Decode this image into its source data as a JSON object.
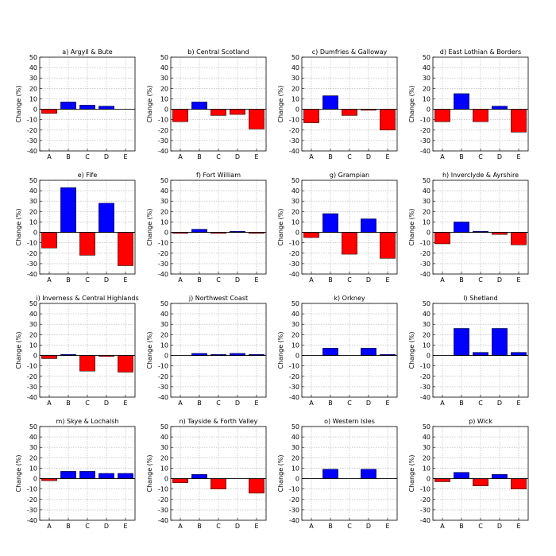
{
  "figure": {
    "ylabel": "Change (%)",
    "ylim": [
      -40,
      50
    ],
    "yticks": [
      -40,
      -30,
      -20,
      -10,
      0,
      10,
      20,
      30,
      40,
      50
    ],
    "categories": [
      "A",
      "B",
      "C",
      "D",
      "E"
    ],
    "colors": {
      "positive": "#0000ff",
      "negative": "#ff0000"
    }
  },
  "chart_data": [
    {
      "type": "bar",
      "title": "a) Argyll & Bute",
      "categories": [
        "A",
        "B",
        "C",
        "D",
        "E"
      ],
      "values": [
        -4,
        7,
        4,
        3,
        0
      ],
      "ylabel": "Change (%)",
      "ylim": [
        -40,
        50
      ],
      "grid": true
    },
    {
      "type": "bar",
      "title": "b) Central Scotland",
      "categories": [
        "A",
        "B",
        "C",
        "D",
        "E"
      ],
      "values": [
        -12,
        7,
        -6,
        -5,
        -19
      ],
      "ylabel": "Change (%)",
      "ylim": [
        -40,
        50
      ],
      "grid": true
    },
    {
      "type": "bar",
      "title": "c) Dumfries & Galloway",
      "categories": [
        "A",
        "B",
        "C",
        "D",
        "E"
      ],
      "values": [
        -13,
        13,
        -6,
        -1,
        -20
      ],
      "ylabel": "Change (%)",
      "ylim": [
        -40,
        50
      ],
      "grid": true
    },
    {
      "type": "bar",
      "title": "d) East Lothian & Borders",
      "categories": [
        "A",
        "B",
        "C",
        "D",
        "E"
      ],
      "values": [
        -12,
        15,
        -12,
        3,
        -22
      ],
      "ylabel": "Change (%)",
      "ylim": [
        -40,
        50
      ],
      "grid": true
    },
    {
      "type": "bar",
      "title": "e) Fife",
      "categories": [
        "A",
        "B",
        "C",
        "D",
        "E"
      ],
      "values": [
        -15,
        43,
        -22,
        28,
        -32
      ],
      "ylabel": "Change (%)",
      "ylim": [
        -40,
        50
      ],
      "grid": true
    },
    {
      "type": "bar",
      "title": "f) Fort William",
      "categories": [
        "A",
        "B",
        "C",
        "D",
        "E"
      ],
      "values": [
        -1,
        3,
        -1,
        1,
        -1
      ],
      "ylabel": "Change (%)",
      "ylim": [
        -40,
        50
      ],
      "grid": true
    },
    {
      "type": "bar",
      "title": "g) Grampian",
      "categories": [
        "A",
        "B",
        "C",
        "D",
        "E"
      ],
      "values": [
        -5,
        18,
        -21,
        13,
        -25
      ],
      "ylabel": "Change (%)",
      "ylim": [
        -40,
        50
      ],
      "grid": true
    },
    {
      "type": "bar",
      "title": "h) Inverclyde & Ayrshire",
      "categories": [
        "A",
        "B",
        "C",
        "D",
        "E"
      ],
      "values": [
        -11,
        10,
        1,
        -2,
        -12
      ],
      "ylabel": "Change (%)",
      "ylim": [
        -40,
        50
      ],
      "grid": true
    },
    {
      "type": "bar",
      "title": "i) Inverness & Central Highlands",
      "categories": [
        "A",
        "B",
        "C",
        "D",
        "E"
      ],
      "values": [
        -3,
        1,
        -15,
        -1,
        -16
      ],
      "ylabel": "Change (%)",
      "ylim": [
        -40,
        50
      ],
      "grid": true
    },
    {
      "type": "bar",
      "title": "j) Northwest Coast",
      "categories": [
        "A",
        "B",
        "C",
        "D",
        "E"
      ],
      "values": [
        0,
        2,
        1,
        2,
        1
      ],
      "ylabel": "Change (%)",
      "ylim": [
        -40,
        50
      ],
      "grid": true
    },
    {
      "type": "bar",
      "title": "k) Orkney",
      "categories": [
        "A",
        "B",
        "C",
        "D",
        "E"
      ],
      "values": [
        0,
        7,
        0,
        7,
        1
      ],
      "ylabel": "Change (%)",
      "ylim": [
        -40,
        50
      ],
      "grid": true
    },
    {
      "type": "bar",
      "title": "l) Shetland",
      "categories": [
        "A",
        "B",
        "C",
        "D",
        "E"
      ],
      "values": [
        0,
        26,
        3,
        26,
        3
      ],
      "ylabel": "Change (%)",
      "ylim": [
        -40,
        50
      ],
      "grid": true
    },
    {
      "type": "bar",
      "title": "m) Skye & Lochalsh",
      "categories": [
        "A",
        "B",
        "C",
        "D",
        "E"
      ],
      "values": [
        -2,
        7,
        7,
        5,
        5
      ],
      "ylabel": "Change (%)",
      "ylim": [
        -40,
        50
      ],
      "grid": true
    },
    {
      "type": "bar",
      "title": "n) Tayside & Forth Valley",
      "categories": [
        "A",
        "B",
        "C",
        "D",
        "E"
      ],
      "values": [
        -4,
        4,
        -10,
        0,
        -14
      ],
      "ylabel": "Change (%)",
      "ylim": [
        -40,
        50
      ],
      "grid": true
    },
    {
      "type": "bar",
      "title": "o) Western Isles",
      "categories": [
        "A",
        "B",
        "C",
        "D",
        "E"
      ],
      "values": [
        0,
        9,
        0,
        9,
        0
      ],
      "ylabel": "Change (%)",
      "ylim": [
        -40,
        50
      ],
      "grid": true
    },
    {
      "type": "bar",
      "title": "p) Wick",
      "categories": [
        "A",
        "B",
        "C",
        "D",
        "E"
      ],
      "values": [
        -3,
        6,
        -7,
        4,
        -10
      ],
      "ylabel": "Change (%)",
      "ylim": [
        -40,
        50
      ],
      "grid": true
    }
  ]
}
